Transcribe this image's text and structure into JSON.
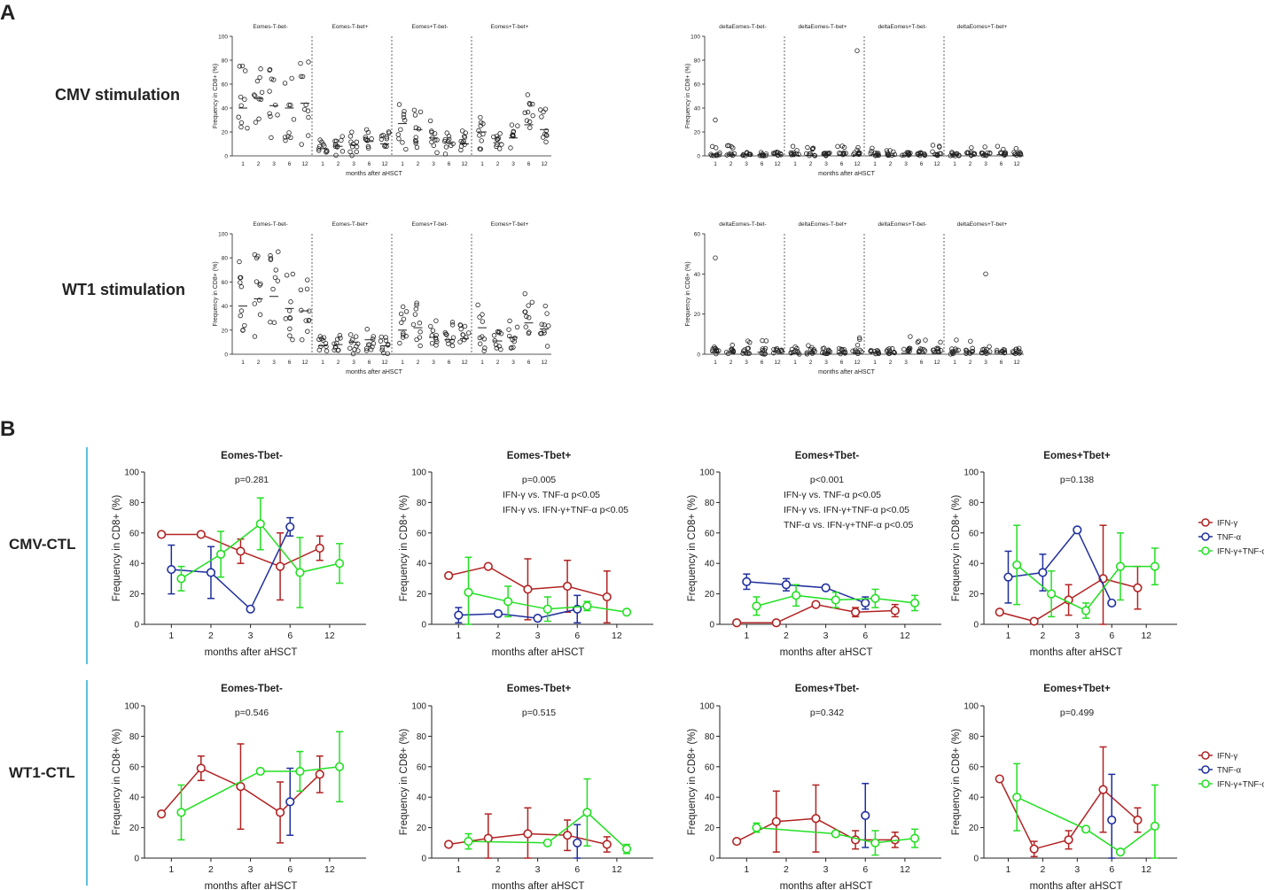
{
  "panel_labels": [
    "A",
    "B"
  ],
  "colors": {
    "ifn": "#b22222",
    "tnf": "#1f2f9e",
    "both": "#22e022",
    "rule": "#5bc0de",
    "ink": "#222222"
  },
  "panel_a": {
    "x_label": "months after aHSCT",
    "y_label": "Frequency in CD8+ (%)",
    "categories": [
      "1",
      "2",
      "3",
      "6",
      "12"
    ],
    "rows": [
      {
        "label": "CMV stimulation",
        "left": {
          "ylim": [
            0,
            100
          ],
          "ticks": [
            "0",
            "20",
            "40",
            "60",
            "80",
            "100"
          ],
          "groups": [
            "Eomes-T-bet-",
            "Eomes-T-bet+",
            "Eomes+T-bet-",
            "Eomes+T-bet+"
          ],
          "medians": [
            [
              40,
              48,
              42,
              40,
              44
            ],
            [
              6,
              8,
              9,
              12,
              10
            ],
            [
              27,
              22,
              15,
              11,
              10
            ],
            [
              20,
              11,
              15,
              26,
              22
            ]
          ]
        },
        "right": {
          "ylim": [
            0,
            100
          ],
          "ticks": [
            "0",
            "20",
            "40",
            "60",
            "80",
            "100"
          ],
          "groups": [
            "deltaEomes-T-bet-",
            "deltaEomes-T-bet+",
            "deltaEomes+T-bet-",
            "deltaEomes+T-bet+"
          ],
          "medians": [
            [
              1,
              1,
              1,
              1,
              1
            ],
            [
              0.5,
              0.5,
              0.5,
              0.5,
              0.5
            ],
            [
              1,
              0.5,
              0.5,
              1,
              0.5
            ],
            [
              1,
              1,
              1,
              1,
              0.5
            ]
          ],
          "outliers": [
            {
              "group": 0,
              "month": "1",
              "value": 30
            },
            {
              "group": 1,
              "month": "12",
              "value": 88
            }
          ]
        }
      },
      {
        "label": "WT1 stimulation",
        "left": {
          "ylim": [
            0,
            100
          ],
          "ticks": [
            "0",
            "20",
            "40",
            "60",
            "80",
            "100"
          ],
          "groups": [
            "Eomes-T-bet-",
            "Eomes-T-bet+",
            "Eomes+T-bet-",
            "Eomes+T-bet+"
          ],
          "medians": [
            [
              40,
              46,
              48,
              38,
              36
            ],
            [
              7,
              8,
              10,
              12,
              7
            ],
            [
              20,
              22,
              14,
              12,
              13
            ],
            [
              22,
              11,
              14,
              26,
              21
            ]
          ]
        },
        "right": {
          "ylim": [
            0,
            60
          ],
          "ticks": [
            "0",
            "20",
            "40",
            "60"
          ],
          "groups": [
            "deltaEomes-T-bet-",
            "deltaEomes-T-bet+",
            "deltaEomes+T-bet-",
            "deltaEomes+T-bet+"
          ],
          "medians": [
            [
              1,
              1,
              1,
              1,
              1
            ],
            [
              0.5,
              0.5,
              0.5,
              0.5,
              0.5
            ],
            [
              1,
              0.5,
              0.5,
              0.5,
              0.5
            ],
            [
              1,
              1,
              1,
              1,
              0.5
            ]
          ],
          "outliers": [
            {
              "group": 0,
              "month": "1",
              "value": 48
            },
            {
              "group": 3,
              "month": "3",
              "value": 40
            }
          ]
        }
      }
    ]
  },
  "panel_b": {
    "x_label": "months after aHSCT",
    "y_label": "Frequency in CD8+ (%)",
    "y_ticks": [
      "0",
      "20",
      "40",
      "60",
      "80",
      "100"
    ],
    "x_ticks": [
      "1",
      "2",
      "3",
      "6",
      "12"
    ],
    "legend": [
      "IFN-γ",
      "TNF-α",
      "IFN-γ+TNF-α"
    ],
    "row_labels": [
      "CMV-CTL",
      "WT1-CTL"
    ]
  },
  "chart_data": [
    {
      "type": "line",
      "title": "Eomes-Tbet-",
      "row": "CMV-CTL",
      "stats": [
        "p=0.281"
      ],
      "ylim": [
        0,
        100
      ],
      "series": [
        {
          "name": "IFN-γ",
          "x": [
            0.75,
            1.75,
            2.75,
            3.75,
            4.75
          ],
          "values": [
            59,
            59,
            48,
            38,
            50
          ],
          "err": [
            0,
            0,
            8,
            22,
            8
          ]
        },
        {
          "name": "TNF-α",
          "x": [
            1,
            2,
            3,
            4
          ],
          "values": [
            36,
            34,
            10,
            64
          ],
          "err": [
            16,
            17,
            0,
            6
          ]
        },
        {
          "name": "IFN-γ+TNF-α",
          "x": [
            1.25,
            2.25,
            3.25,
            4.25,
            5.25
          ],
          "values": [
            30,
            46,
            66,
            34,
            40
          ],
          "err": [
            8,
            15,
            17,
            23,
            13
          ]
        }
      ]
    },
    {
      "type": "line",
      "title": "Eomes-Tbet+",
      "row": "CMV-CTL",
      "stats": [
        "p=0.005",
        "IFN-γ vs. TNF-α  p<0.05",
        "IFN-γ vs. IFN-γ+TNF-α   p<0.05"
      ],
      "ylim": [
        0,
        100
      ],
      "series": [
        {
          "name": "IFN-γ",
          "x": [
            0.75,
            1.75,
            2.75,
            3.75,
            4.75
          ],
          "values": [
            32,
            38,
            23,
            25,
            18
          ],
          "err": [
            0,
            0,
            20,
            17,
            17
          ]
        },
        {
          "name": "TNF-α",
          "x": [
            1,
            2,
            3,
            4
          ],
          "values": [
            6,
            7,
            4,
            10
          ],
          "err": [
            5,
            0,
            0,
            9
          ]
        },
        {
          "name": "IFN-γ+TNF-α",
          "x": [
            1.25,
            2.25,
            3.25,
            4.25,
            5.25
          ],
          "values": [
            21,
            15,
            10,
            12,
            8
          ],
          "err": [
            23,
            10,
            8,
            3,
            0
          ]
        }
      ]
    },
    {
      "type": "line",
      "title": "Eomes+Tbet-",
      "row": "CMV-CTL",
      "stats": [
        "p<0.001",
        "IFN-γ vs. TNF-α  p<0.05",
        "IFN-γ vs. IFN-γ+TNF-α  p<0.05",
        "TNF-α vs. IFN-γ+TNF-α  p<0.05"
      ],
      "ylim": [
        0,
        100
      ],
      "series": [
        {
          "name": "IFN-γ",
          "x": [
            0.75,
            1.75,
            2.75,
            3.75,
            4.75
          ],
          "values": [
            1,
            1,
            13,
            8,
            9
          ],
          "err": [
            0,
            0,
            0,
            3,
            4
          ]
        },
        {
          "name": "TNF-α",
          "x": [
            1,
            2,
            3,
            4
          ],
          "values": [
            28,
            26,
            24,
            14
          ],
          "err": [
            5,
            4,
            0,
            4
          ]
        },
        {
          "name": "IFN-γ+TNF-α",
          "x": [
            1.25,
            2.25,
            3.25,
            4.25,
            5.25
          ],
          "values": [
            12,
            19,
            16,
            17,
            14
          ],
          "err": [
            6,
            7,
            5,
            6,
            5
          ]
        }
      ]
    },
    {
      "type": "line",
      "title": "Eomes+Tbet+",
      "row": "CMV-CTL",
      "stats": [
        "p=0.138"
      ],
      "ylim": [
        0,
        100
      ],
      "series": [
        {
          "name": "IFN-γ",
          "x": [
            0.75,
            1.75,
            2.75,
            3.75,
            4.75
          ],
          "values": [
            8,
            2,
            16,
            30,
            24
          ],
          "err": [
            0,
            0,
            10,
            35,
            14
          ]
        },
        {
          "name": "TNF-α",
          "x": [
            1,
            2,
            3,
            4
          ],
          "values": [
            31,
            34,
            62,
            14
          ],
          "err": [
            17,
            12,
            0,
            0
          ]
        },
        {
          "name": "IFN-γ+TNF-α",
          "x": [
            1.25,
            2.25,
            3.25,
            4.25,
            5.25
          ],
          "values": [
            39,
            20,
            9,
            38,
            38
          ],
          "err": [
            26,
            15,
            5,
            22,
            12
          ]
        }
      ]
    },
    {
      "type": "line",
      "title": "Eomes-Tbet-",
      "row": "WT1-CTL",
      "stats": [
        "p=0.546"
      ],
      "ylim": [
        0,
        100
      ],
      "series": [
        {
          "name": "IFN-γ",
          "x": [
            0.75,
            1.75,
            2.75,
            3.75,
            4.75
          ],
          "values": [
            29,
            59,
            47,
            30,
            55
          ],
          "err": [
            0,
            8,
            28,
            20,
            12
          ]
        },
        {
          "name": "TNF-α",
          "x": [
            4
          ],
          "values": [
            37
          ],
          "err": [
            22
          ]
        },
        {
          "name": "IFN-γ+TNF-α",
          "x": [
            1.25,
            3.25,
            4.25,
            5.25
          ],
          "values": [
            30,
            57,
            57,
            60
          ],
          "err": [
            18,
            0,
            13,
            23
          ]
        }
      ]
    },
    {
      "type": "line",
      "title": "Eomes-Tbet+",
      "row": "WT1-CTL",
      "stats": [
        "p=0.515"
      ],
      "ylim": [
        0,
        100
      ],
      "series": [
        {
          "name": "IFN-γ",
          "x": [
            0.75,
            1.75,
            2.75,
            3.75,
            4.75
          ],
          "values": [
            9,
            13,
            16,
            15,
            9
          ],
          "err": [
            0,
            16,
            17,
            10,
            5
          ]
        },
        {
          "name": "TNF-α",
          "x": [
            4
          ],
          "values": [
            10
          ],
          "err": [
            12
          ]
        },
        {
          "name": "IFN-γ+TNF-α",
          "x": [
            1.25,
            3.25,
            4.25,
            5.25
          ],
          "values": [
            11,
            10,
            30,
            6
          ],
          "err": [
            5,
            0,
            22,
            3
          ]
        }
      ]
    },
    {
      "type": "line",
      "title": "Eomes+Tbet-",
      "row": "WT1-CTL",
      "stats": [
        "p=0.342"
      ],
      "ylim": [
        0,
        100
      ],
      "series": [
        {
          "name": "IFN-γ",
          "x": [
            0.75,
            1.75,
            2.75,
            3.75,
            4.75
          ],
          "values": [
            11,
            24,
            26,
            12,
            12
          ],
          "err": [
            0,
            20,
            22,
            6,
            5
          ]
        },
        {
          "name": "TNF-α",
          "x": [
            4
          ],
          "values": [
            28
          ],
          "err": [
            21
          ]
        },
        {
          "name": "IFN-γ+TNF-α",
          "x": [
            1.25,
            3.25,
            4.25,
            5.25
          ],
          "values": [
            20,
            16,
            10,
            13
          ],
          "err": [
            3,
            0,
            8,
            6
          ]
        }
      ]
    },
    {
      "type": "line",
      "title": "Eomes+Tbet+",
      "row": "WT1-CTL",
      "stats": [
        "p=0.499"
      ],
      "ylim": [
        0,
        100
      ],
      "series": [
        {
          "name": "IFN-γ",
          "x": [
            0.75,
            1.75,
            2.75,
            3.75,
            4.75
          ],
          "values": [
            52,
            6,
            12,
            45,
            25
          ],
          "err": [
            0,
            5,
            6,
            28,
            8
          ]
        },
        {
          "name": "TNF-α",
          "x": [
            4
          ],
          "values": [
            25
          ],
          "err": [
            30
          ]
        },
        {
          "name": "IFN-γ+TNF-α",
          "x": [
            1.25,
            3.25,
            4.25,
            5.25
          ],
          "values": [
            40,
            19,
            4,
            21
          ],
          "err": [
            22,
            0,
            0,
            27
          ]
        }
      ]
    }
  ]
}
